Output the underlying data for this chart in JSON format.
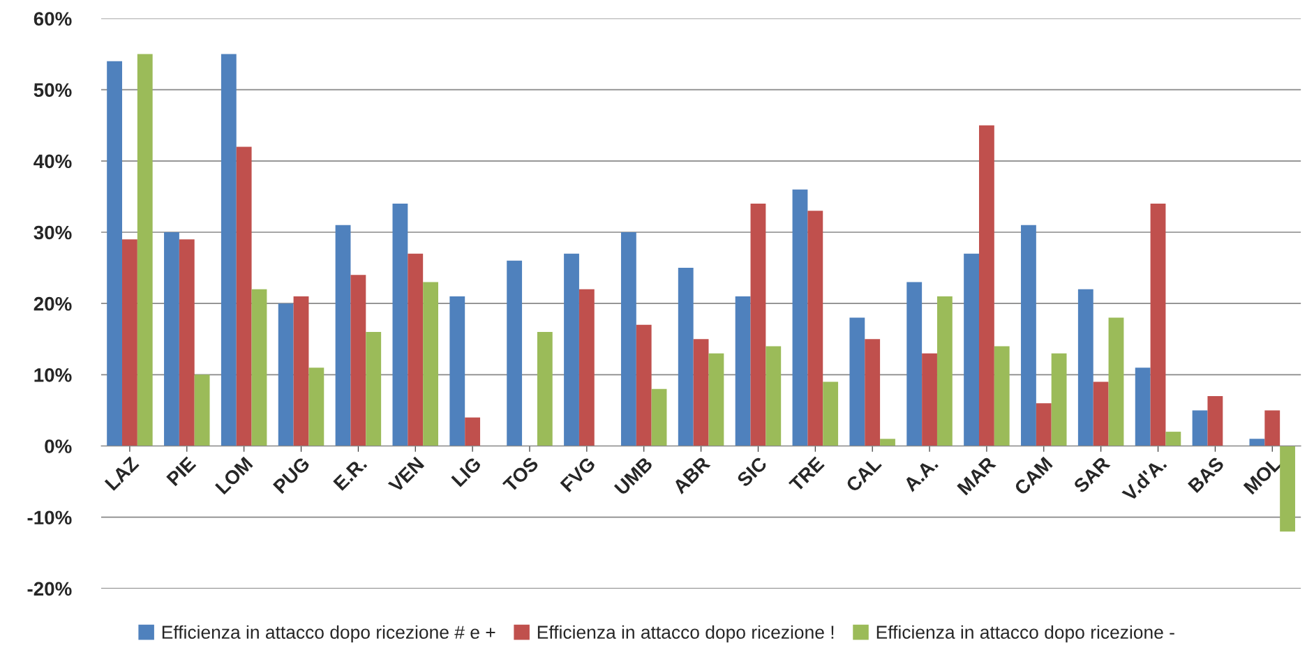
{
  "chart_data": {
    "type": "bar",
    "categories": [
      "LAZ",
      "PIE",
      "LOM",
      "PUG",
      "E.R.",
      "VEN",
      "LIG",
      "TOS",
      "FVG",
      "UMB",
      "ABR",
      "SIC",
      "TRE",
      "CAL",
      "A.A.",
      "MAR",
      "CAM",
      "SAR",
      "V.d'A.",
      "BAS",
      "MOL"
    ],
    "series": [
      {
        "name": "Efficienza in attacco dopo ricezione # e +",
        "color": "#4f81bd",
        "values": [
          54,
          30,
          55,
          20,
          31,
          34,
          21,
          26,
          27,
          30,
          25,
          21,
          36,
          18,
          23,
          27,
          31,
          22,
          11,
          5,
          1
        ]
      },
      {
        "name": "Efficienza in attacco dopo ricezione !",
        "color": "#c0504d",
        "values": [
          29,
          29,
          42,
          21,
          24,
          27,
          4,
          null,
          22,
          17,
          15,
          34,
          33,
          15,
          13,
          45,
          6,
          9,
          34,
          7,
          5
        ]
      },
      {
        "name": "Efficienza in attacco dopo ricezione -",
        "color": "#9bbb59",
        "values": [
          55,
          10,
          22,
          11,
          16,
          23,
          null,
          16,
          null,
          8,
          13,
          14,
          9,
          1,
          21,
          14,
          13,
          18,
          2,
          null,
          -12
        ]
      }
    ],
    "ylim": [
      -20,
      60
    ],
    "yticks": [
      {
        "value": -20,
        "label": "-20%"
      },
      {
        "value": -10,
        "label": "-10%"
      },
      {
        "value": 0,
        "label": "0%"
      },
      {
        "value": 10,
        "label": "10%"
      },
      {
        "value": 20,
        "label": "20%"
      },
      {
        "value": 30,
        "label": "30%"
      },
      {
        "value": 40,
        "label": "40%"
      },
      {
        "value": 50,
        "label": "50%"
      },
      {
        "value": 60,
        "label": "60%"
      }
    ],
    "grid": "y",
    "legend": "bottom"
  }
}
